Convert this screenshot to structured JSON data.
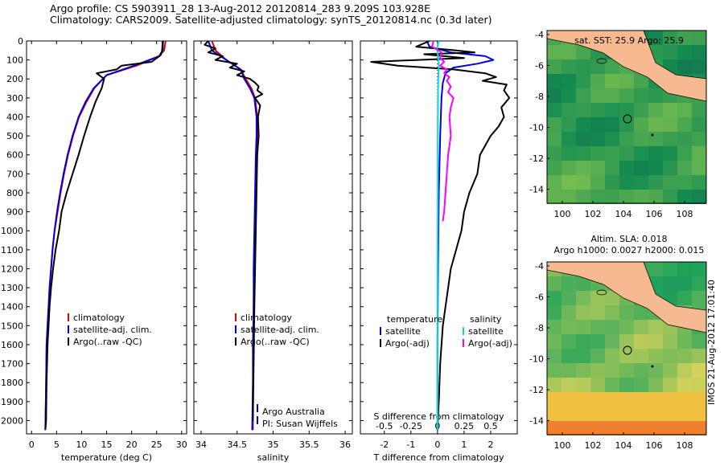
{
  "header": {
    "line1": "Argo profile: CS 5903911_28 13-Aug-2012 20120814_283 9.209S 103.928E",
    "line2": "Climatology: CARS2009. Satellite-adjusted climatology: synTS_20120814.nc (0.3d later)"
  },
  "colors": {
    "climatology": "#e00000",
    "satellite_clim": "#0000dd",
    "argo": "#000000",
    "s_sat": "#00dddd",
    "s_argo": "#ff00ff",
    "land": "#f6b990"
  },
  "chart_data": [
    {
      "type": "line",
      "id": "temperature",
      "xlabel": "temperature (deg C)",
      "ylabel": "",
      "xlim": [
        -1,
        31
      ],
      "ylim": [
        2070,
        0
      ],
      "xticks": [
        0,
        5,
        10,
        15,
        20,
        25,
        30
      ],
      "yticks": [
        0,
        100,
        200,
        300,
        400,
        500,
        600,
        700,
        800,
        900,
        1000,
        1100,
        1200,
        1300,
        1400,
        1500,
        1600,
        1700,
        1800,
        1900,
        2000
      ],
      "legend": [
        "climatology",
        "satellite-adj. clim.",
        "Argo(..raw -QC)"
      ],
      "series": [
        {
          "name": "climatology",
          "color": "#e00000",
          "x": [
            26.8,
            26.5,
            25.5,
            21,
            15,
            12.5,
            11,
            9.5,
            8.3,
            7.3,
            6.5,
            5.8,
            5.2,
            4.6,
            4.2,
            3.9,
            3.6,
            3.4,
            3.2,
            3.0,
            2.9,
            2.8,
            2.75
          ],
          "y": [
            0,
            50,
            80,
            130,
            180,
            250,
            320,
            400,
            500,
            600,
            700,
            800,
            900,
            1000,
            1100,
            1200,
            1300,
            1400,
            1500,
            1600,
            1800,
            2000,
            2050
          ]
        },
        {
          "name": "satellite-adj. clim.",
          "color": "#0000dd",
          "x": [
            26.3,
            26.2,
            25.5,
            20.5,
            15,
            12.4,
            10.8,
            9.4,
            8.2,
            7.2,
            6.4,
            5.7,
            5.1,
            4.6,
            4.2,
            3.9,
            3.6,
            3.4,
            3.2,
            3.0,
            2.9,
            2.8,
            2.75
          ],
          "y": [
            0,
            50,
            80,
            130,
            180,
            250,
            320,
            400,
            500,
            600,
            700,
            800,
            900,
            1000,
            1100,
            1200,
            1300,
            1400,
            1500,
            1600,
            1800,
            2000,
            2050
          ]
        },
        {
          "name": "Argo(..raw -QC)",
          "color": "#000000",
          "x": [
            26.2,
            26.1,
            25.8,
            24,
            18,
            17,
            13,
            14.5,
            14,
            12.8,
            11.7,
            10.5,
            9.4,
            8.2,
            7,
            6,
            5.5,
            4.8,
            4.3,
            3.9,
            3.6,
            3.4,
            3.2,
            3.0,
            2.9,
            2.8
          ],
          "y": [
            0,
            50,
            75,
            110,
            130,
            150,
            170,
            200,
            250,
            320,
            400,
            500,
            600,
            700,
            800,
            900,
            1000,
            1100,
            1200,
            1300,
            1400,
            1500,
            1600,
            1800,
            2000,
            2040
          ]
        }
      ]
    },
    {
      "type": "line",
      "id": "salinity",
      "xlabel": "salinity",
      "ylabel": "",
      "xlim": [
        33.9,
        36.1
      ],
      "ylim": [
        2070,
        0
      ],
      "xticks": [
        34,
        34.5,
        35,
        35.5,
        36
      ],
      "legend": [
        "climatology",
        "satellite-adj. clim.",
        "Argo(..raw -QC)"
      ],
      "annotations": [
        "Argo Australia",
        "PI: Susan Wijffels"
      ],
      "series": [
        {
          "name": "climatology",
          "color": "#e00000",
          "x": [
            34.15,
            34.2,
            34.35,
            34.55,
            34.62,
            34.7,
            34.75,
            34.78,
            34.78,
            34.77,
            34.76,
            34.75,
            34.74,
            34.73,
            34.73,
            34.72,
            34.72
          ],
          "y": [
            0,
            50,
            100,
            150,
            200,
            250,
            300,
            400,
            500,
            600,
            800,
            1000,
            1200,
            1400,
            1600,
            1800,
            2050
          ]
        },
        {
          "name": "satellite-adj. clim.",
          "color": "#0000dd",
          "x": [
            34.1,
            34.15,
            34.35,
            34.55,
            34.6,
            34.68,
            34.74,
            34.77,
            34.77,
            34.76,
            34.75,
            34.74,
            34.73,
            34.73,
            34.72,
            34.72,
            34.71
          ],
          "y": [
            0,
            50,
            100,
            150,
            200,
            250,
            300,
            400,
            500,
            600,
            800,
            1000,
            1200,
            1400,
            1600,
            1800,
            2050
          ]
        },
        {
          "name": "Argo(..raw -QC)",
          "color": "#000000",
          "x": [
            34.1,
            34.05,
            34.2,
            34.1,
            34.3,
            34.2,
            34.5,
            34.4,
            34.6,
            34.5,
            34.68,
            34.75,
            34.8,
            34.78,
            34.85,
            34.75,
            34.82,
            34.79,
            34.8,
            34.78,
            34.77,
            34.76,
            34.75,
            34.74,
            34.73,
            34.72
          ],
          "y": [
            0,
            20,
            40,
            60,
            80,
            100,
            120,
            140,
            160,
            180,
            200,
            220,
            240,
            260,
            280,
            300,
            340,
            400,
            500,
            600,
            800,
            1000,
            1200,
            1400,
            1700,
            2000
          ]
        }
      ]
    },
    {
      "type": "line",
      "id": "differences",
      "xlabel": "T difference from climatology",
      "xlabel2": "S difference from climatology",
      "xlim": [
        -2.9,
        3.0
      ],
      "ylim": [
        2070,
        0
      ],
      "xticks": [
        -2,
        -1,
        0,
        1,
        2
      ],
      "xticks_s": [
        "-0.5",
        "-0.25",
        "0",
        "0.25",
        "0.5"
      ],
      "legend_t": [
        "temperature",
        "satellite",
        "Argo(-adj)"
      ],
      "legend_s": [
        "salinity",
        "satellite",
        "Argo(-adj)"
      ],
      "series": [
        {
          "name": "temperature satellite",
          "color": "#0000dd",
          "x": [
            -0.4,
            -0.3,
            0.5,
            1.8,
            2.1,
            1.5,
            0.6,
            0.3,
            0.2,
            0.15,
            0.1,
            0.05,
            0.02,
            0,
            0
          ],
          "y": [
            0,
            30,
            60,
            80,
            100,
            120,
            140,
            170,
            220,
            300,
            500,
            800,
            1200,
            1600,
            2050
          ]
        },
        {
          "name": "temperature Argo(-adj)",
          "color": "#000000",
          "x": [
            -0.3,
            -0.8,
            0.7,
            1.4,
            -0.5,
            1.0,
            -2.5,
            -1.5,
            0.6,
            1.8,
            2.2,
            1.7,
            2.6,
            2.5,
            2.7,
            2.4,
            2.5,
            2.3,
            2.0,
            1.6,
            1.5,
            1.2,
            1.0,
            0.9,
            0.7,
            0.5,
            0.4,
            0.2,
            0.1,
            0.05,
            0
          ],
          "y": [
            0,
            30,
            50,
            60,
            70,
            90,
            110,
            130,
            150,
            170,
            190,
            210,
            230,
            260,
            300,
            350,
            400,
            450,
            500,
            600,
            700,
            800,
            900,
            1000,
            1100,
            1200,
            1300,
            1500,
            1700,
            1900,
            2050
          ]
        },
        {
          "name": "salinity satellite",
          "color": "#00dddd",
          "x": [
            0.05,
            -0.02,
            0.02,
            0.05,
            0.03,
            0.02,
            0.01,
            0.01,
            0,
            0
          ],
          "y": [
            0,
            40,
            80,
            120,
            200,
            300,
            500,
            800,
            1200,
            2050
          ]
        },
        {
          "name": "salinity Argo(-adj)",
          "color": "#ff00ff",
          "x": [
            -0.15,
            -0.2,
            0.15,
            0.1,
            0.25,
            0.1,
            0.35,
            0.25,
            0.45,
            0.35,
            0.5,
            0.4,
            0.6,
            0.5,
            0.45,
            0.5,
            0.4,
            0.35,
            0.3,
            0.25,
            0.2
          ],
          "y": [
            0,
            30,
            60,
            90,
            110,
            130,
            150,
            170,
            190,
            210,
            240,
            270,
            300,
            350,
            400,
            500,
            600,
            700,
            800,
            900,
            950
          ]
        }
      ]
    }
  ],
  "maps": [
    {
      "id": "sst",
      "title": "sat. SST: 25.9 Argo: 25.9",
      "xticks": [
        "100",
        "102",
        "104",
        "106",
        "108"
      ],
      "yticks": [
        "-4",
        "-6",
        "-8",
        "-10",
        "-12",
        "-14"
      ]
    },
    {
      "id": "sla",
      "title1": "Altim. SLA: 0.018",
      "title2": "Argo h1000: 0.0027 h2000: 0.015",
      "xticks": [
        "100",
        "102",
        "104",
        "106",
        "108"
      ],
      "yticks": [
        "-4",
        "-6",
        "-8",
        "-10",
        "-12",
        "-14"
      ]
    }
  ],
  "footer": {
    "sidebar": "IMOS 21-Aug-2012 17:01:40"
  }
}
